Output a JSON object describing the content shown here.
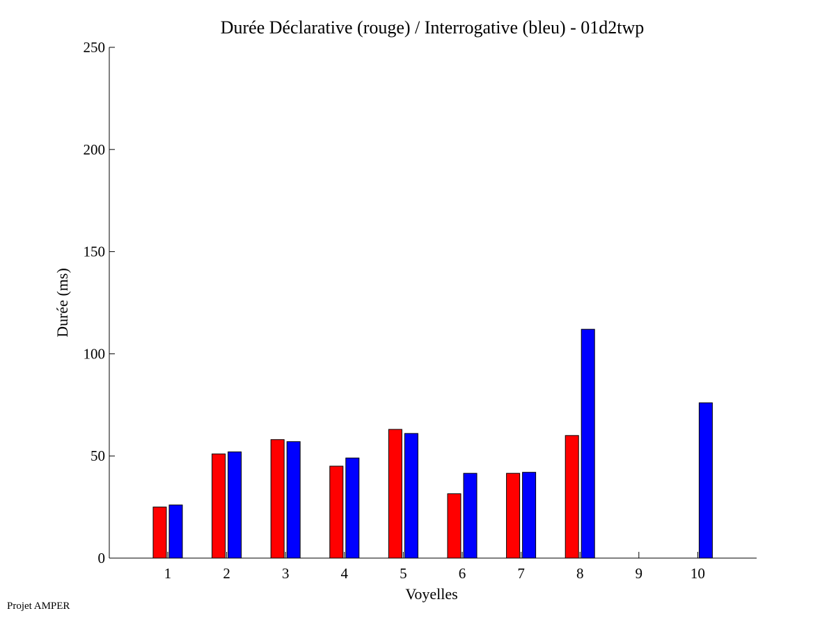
{
  "chart_data": {
    "type": "bar",
    "title": "Durée Déclarative (rouge) / Interrogative (bleu) - 01d2twp",
    "xlabel": "Voyelles",
    "ylabel": "Durée (ms)",
    "categories": [
      "1",
      "2",
      "3",
      "4",
      "5",
      "6",
      "7",
      "8",
      "9",
      "10"
    ],
    "series": [
      {
        "color": "#ff0000",
        "values": [
          25,
          51,
          58,
          45,
          63,
          31.5,
          41.5,
          60,
          null,
          null
        ]
      },
      {
        "color": "#0000ff",
        "values": [
          26,
          52,
          57,
          49,
          61,
          41.5,
          42,
          112,
          null,
          76
        ]
      }
    ],
    "ylim": [
      0,
      250
    ],
    "yticks": [
      0,
      50,
      100,
      150,
      200,
      250
    ],
    "grid": false,
    "legend": "none"
  },
  "footer": "Projet AMPER"
}
